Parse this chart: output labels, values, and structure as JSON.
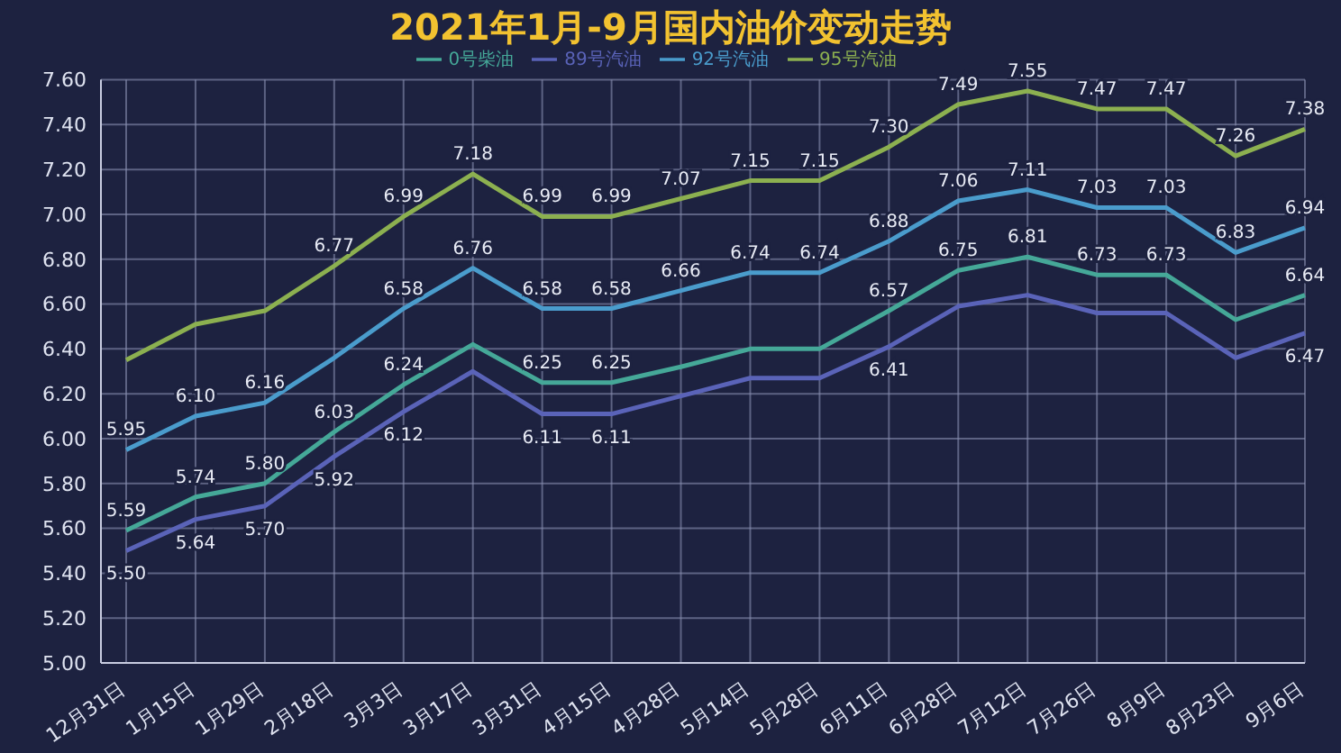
{
  "chart_data": {
    "type": "line",
    "title": "2021年1月-9月国内油价变动走势",
    "categories": [
      "12月31日",
      "1月15日",
      "1月29日",
      "2月18日",
      "3月3日",
      "3月17日",
      "3月31日",
      "4月15日",
      "4月28日",
      "5月14日",
      "5月28日",
      "6月11日",
      "6月28日",
      "7月12日",
      "7月26日",
      "8月9日",
      "8月23日",
      "9月6日"
    ],
    "series": [
      {
        "name": "89号汽油",
        "color": "#5a63b8",
        "values": [
          5.5,
          5.64,
          5.7,
          5.92,
          6.12,
          6.3,
          6.11,
          6.11,
          6.19,
          6.27,
          6.27,
          6.41,
          6.59,
          6.64,
          6.56,
          6.56,
          6.36,
          6.47
        ],
        "value_labels": [
          "5.50",
          "5.64",
          "5.70",
          "5.92",
          "6.12",
          null,
          "6.11",
          "6.11",
          null,
          null,
          null,
          "6.41",
          null,
          null,
          null,
          null,
          null,
          "6.47"
        ]
      },
      {
        "name": "92号汽油",
        "color": "#4a9ccc",
        "values": [
          5.95,
          6.1,
          6.16,
          6.36,
          6.58,
          6.76,
          6.58,
          6.58,
          6.66,
          6.74,
          6.74,
          6.88,
          7.06,
          7.11,
          7.03,
          7.03,
          6.83,
          6.94
        ],
        "value_labels": [
          "5.95",
          "6.10",
          "6.16",
          null,
          "6.58",
          "6.76",
          "6.58",
          "6.58",
          "6.66",
          "6.74",
          "6.74",
          "6.88",
          "7.06",
          "7.11",
          "7.03",
          "7.03",
          "6.83",
          "6.94"
        ]
      },
      {
        "name": "95号汽油",
        "color": "#8cb050",
        "values": [
          6.35,
          6.51,
          6.57,
          6.77,
          6.99,
          7.18,
          6.99,
          6.99,
          7.07,
          7.15,
          7.15,
          7.3,
          7.49,
          7.55,
          7.47,
          7.47,
          7.26,
          7.38
        ],
        "value_labels": [
          null,
          null,
          null,
          "6.77",
          "6.99",
          "7.18",
          "6.99",
          "6.99",
          "7.07",
          "7.15",
          "7.15",
          "7.30",
          "7.49",
          "7.55",
          "7.47",
          "7.47",
          "7.26",
          "7.38"
        ]
      },
      {
        "name": "0号柴油",
        "color": "#45a898",
        "values": [
          5.59,
          5.74,
          5.8,
          6.03,
          6.24,
          6.42,
          6.25,
          6.25,
          6.32,
          6.4,
          6.4,
          6.57,
          6.75,
          6.81,
          6.73,
          6.73,
          6.53,
          6.64
        ],
        "value_labels": [
          "5.59",
          "5.74",
          "5.80",
          "6.03",
          "6.24",
          null,
          "6.25",
          "6.25",
          null,
          null,
          null,
          "6.57",
          "6.75",
          "6.81",
          "6.73",
          "6.73",
          null,
          "6.64"
        ]
      }
    ],
    "ylim": [
      5.0,
      7.6
    ],
    "yticks": [
      {
        "value": 5.0,
        "label": "5.00"
      },
      {
        "value": 5.2,
        "label": "5.20"
      },
      {
        "value": 5.4,
        "label": "5.40"
      },
      {
        "value": 5.6,
        "label": "5.60"
      },
      {
        "value": 5.8,
        "label": "5.80"
      },
      {
        "value": 6.0,
        "label": "6.00"
      },
      {
        "value": 6.2,
        "label": "6.20"
      },
      {
        "value": 6.4,
        "label": "6.40"
      },
      {
        "value": 6.6,
        "label": "6.60"
      },
      {
        "value": 6.8,
        "label": "6.80"
      },
      {
        "value": 7.0,
        "label": "7.00"
      },
      {
        "value": 7.2,
        "label": "7.20"
      },
      {
        "value": 7.4,
        "label": "7.40"
      },
      {
        "value": 7.6,
        "label": "7.60"
      }
    ],
    "grid": true,
    "legend": "top",
    "marker": "none",
    "line_style": "solid"
  }
}
